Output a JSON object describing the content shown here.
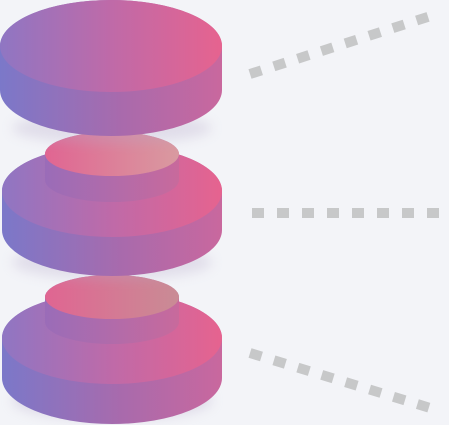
{
  "diagram": {
    "type": "stacked-layers",
    "layer_count": 3,
    "layers": [
      {
        "id": "layer-top",
        "position": "top",
        "has_hub": false
      },
      {
        "id": "layer-middle",
        "position": "middle",
        "has_hub": true
      },
      {
        "id": "layer-bottom",
        "position": "bottom",
        "has_hub": true
      }
    ],
    "connectors": [
      {
        "id": "connector-top",
        "style": "dotted",
        "direction": "up-right"
      },
      {
        "id": "connector-middle",
        "style": "dotted",
        "direction": "right"
      },
      {
        "id": "connector-bottom",
        "style": "dotted",
        "direction": "down-right"
      }
    ],
    "colors": {
      "background": "#f3f4f8",
      "gradient_start": "#7c76c8",
      "gradient_end": "#e36291",
      "hub_top": "#d99aa0",
      "connector": "#c7c8c9"
    }
  }
}
